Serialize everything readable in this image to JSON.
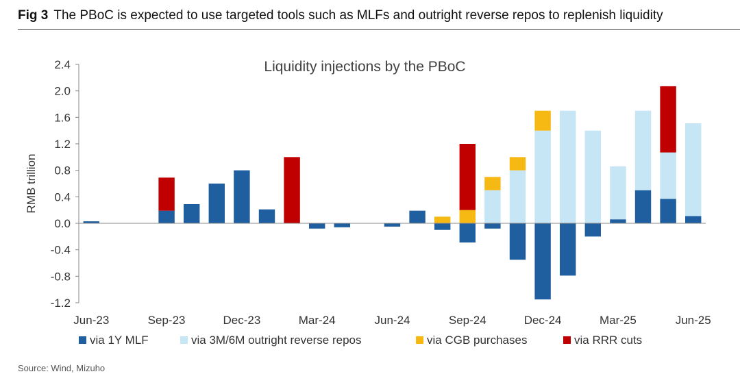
{
  "figure": {
    "number": "Fig 3",
    "caption": "The PBoC is expected to use targeted tools such as MLFs and outright reverse repos to replenish liquidity",
    "source": "Source: Wind, Mizuho"
  },
  "chart_data": {
    "type": "bar",
    "stacked": true,
    "title": "Liquidity injections by the PBoC",
    "xlabel": "",
    "ylabel": "RMB trillion",
    "ylim": [
      -1.2,
      2.4
    ],
    "yticks": [
      "2.4",
      "2.0",
      "1.6",
      "1.2",
      "0.8",
      "0.4",
      "0.0",
      "-0.4",
      "-0.8",
      "-1.2"
    ],
    "ytick_values": [
      2.4,
      2.0,
      1.6,
      1.2,
      0.8,
      0.4,
      0.0,
      -0.4,
      -0.8,
      -1.2
    ],
    "categories": [
      "Jun-23",
      "Jul-23",
      "Aug-23",
      "Sep-23",
      "Oct-23",
      "Nov-23",
      "Dec-23",
      "Jan-24",
      "Feb-24",
      "Mar-24",
      "Apr-24",
      "May-24",
      "Jun-24",
      "Jul-24",
      "Aug-24",
      "Sep-24",
      "Oct-24",
      "Nov-24",
      "Dec-24",
      "Jan-25",
      "Feb-25",
      "Mar-25",
      "Apr-25",
      "May-25",
      "Jun-25"
    ],
    "tick_labels": [
      "Jun-23",
      "Sep-23",
      "Dec-23",
      "Mar-24",
      "Jun-24",
      "Sep-24",
      "Dec-24",
      "Mar-25",
      "Jun-25"
    ],
    "tick_label_categories": [
      "Jun-23",
      "Sep-23",
      "Dec-23",
      "Mar-24",
      "Jun-24",
      "Sep-24",
      "Dec-24",
      "Mar-25",
      "Jun-25"
    ],
    "grid": false,
    "legend_position": "bottom",
    "series": [
      {
        "name": "via 1Y MLF",
        "color": "#1f5fa0",
        "values": [
          0.03,
          0,
          0,
          0.19,
          0.29,
          0.6,
          0.8,
          0.21,
          0,
          -0.08,
          -0.06,
          0,
          -0.05,
          0.19,
          -0.1,
          -0.29,
          -0.08,
          -0.55,
          -1.15,
          -0.79,
          -0.2,
          0.06,
          0.5,
          0.37,
          0.11
        ]
      },
      {
        "name": "via 3M/6M outright reverse repos",
        "color": "#c6e5f5",
        "values": [
          0,
          0,
          0,
          0,
          0,
          0,
          0,
          0,
          0,
          0,
          0,
          0,
          0,
          0,
          0,
          0,
          0.5,
          0.8,
          1.4,
          1.7,
          1.4,
          0.8,
          1.2,
          0.7,
          1.4
        ]
      },
      {
        "name": "via CGB purchases",
        "color": "#f6b913",
        "values": [
          0,
          0,
          0,
          0,
          0,
          0,
          0,
          0,
          0,
          0,
          0,
          0,
          0,
          0,
          0.1,
          0.2,
          0.2,
          0.2,
          0.3,
          0,
          0,
          0,
          0,
          0,
          0
        ]
      },
      {
        "name": "via RRR cuts",
        "color": "#c00000",
        "values": [
          0,
          0,
          0,
          0.5,
          0,
          0,
          0,
          0,
          1.0,
          0,
          0,
          0,
          0,
          0,
          0,
          1.0,
          0,
          0,
          0,
          0,
          0,
          0,
          0,
          1.0,
          0
        ]
      }
    ]
  }
}
